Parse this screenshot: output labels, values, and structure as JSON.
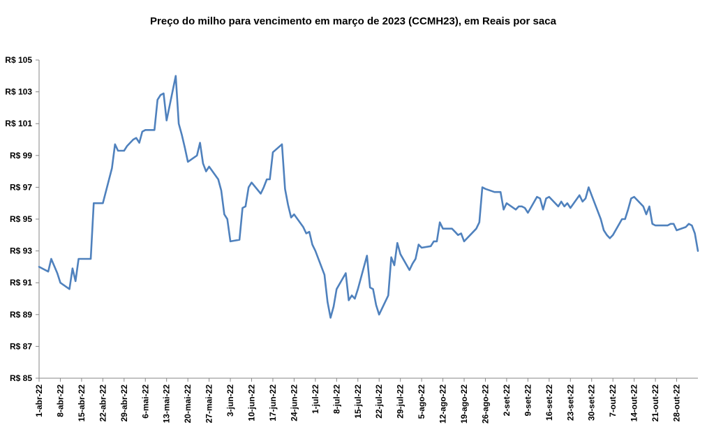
{
  "chart_data": {
    "type": "line",
    "title": "Preço do milho para vencimento em março de 2023 (CCMH23), em Reais por saca",
    "xlabel": "",
    "ylabel": "",
    "ylim": [
      85,
      105
    ],
    "y_ticks": [
      85,
      87,
      89,
      91,
      93,
      95,
      97,
      99,
      101,
      103,
      105
    ],
    "y_tick_labels": [
      "R$ 85",
      "R$ 87",
      "R$ 89",
      "R$ 91",
      "R$ 93",
      "R$ 95",
      "R$ 97",
      "R$ 99",
      "R$ 101",
      "R$ 103",
      "R$ 105"
    ],
    "x_tick_labels": [
      "1-abr-22",
      "8-abr-22",
      "15-abr-22",
      "22-abr-22",
      "29-abr-22",
      "6-mai-22",
      "13-mai-22",
      "20-mai-22",
      "27-mai-22",
      "3-jun-22",
      "10-jun-22",
      "17-jun-22",
      "24-jun-22",
      "1-jul-22",
      "8-jul-22",
      "15-jul-22",
      "22-jul-22",
      "29-jul-22",
      "5-ago-22",
      "12-ago-22",
      "19-ago-22",
      "26-ago-22",
      "2-set-22",
      "9-set-22",
      "16-set-22",
      "23-set-22",
      "30-set-22",
      "7-out-22",
      "14-out-22",
      "21-out-22",
      "28-out-22"
    ],
    "x_range_days": [
      0,
      217
    ],
    "grid": false,
    "legend": "none",
    "line_color": "#4f81bd",
    "series": [
      {
        "name": "CCMH23",
        "x_days": [
          0,
          3,
          4,
          6,
          7,
          10,
          11,
          12,
          13,
          17,
          18,
          21,
          24,
          25,
          26,
          28,
          29,
          31,
          32,
          33,
          34,
          35,
          38,
          39,
          40,
          41,
          42,
          45,
          46,
          47,
          48,
          49,
          52,
          53,
          54,
          55,
          56,
          59,
          60,
          61,
          62,
          63,
          66,
          67,
          68,
          69,
          70,
          73,
          74,
          75,
          76,
          77,
          80,
          81,
          82,
          83,
          84,
          87,
          88,
          89,
          90,
          91,
          94,
          95,
          96,
          97,
          98,
          101,
          102,
          103,
          104,
          105,
          108,
          109,
          110,
          111,
          112,
          115,
          116,
          117,
          118,
          119,
          122,
          123,
          124,
          125,
          126,
          129,
          130,
          131,
          132,
          133,
          136,
          137,
          138,
          139,
          140,
          143,
          144,
          145,
          146,
          147,
          150,
          151,
          152,
          153,
          154,
          157,
          158,
          159,
          160,
          161,
          164,
          165,
          166,
          167,
          168,
          171,
          172,
          173,
          174,
          175,
          178,
          179,
          180,
          181,
          182,
          185,
          186,
          187,
          188,
          189,
          192,
          193,
          194,
          195,
          196,
          199,
          200,
          201,
          202,
          203,
          206,
          207,
          208,
          209,
          210,
          213,
          214,
          215,
          216,
          217
        ],
        "values": [
          92.0,
          91.7,
          92.5,
          91.6,
          91.0,
          90.6,
          91.9,
          91.1,
          92.5,
          92.5,
          96.0,
          96.0,
          98.2,
          99.7,
          99.3,
          99.3,
          99.6,
          100.0,
          100.1,
          99.8,
          100.5,
          100.6,
          100.6,
          102.5,
          102.8,
          102.9,
          101.2,
          104.0,
          101.0,
          100.3,
          99.5,
          98.6,
          99.0,
          99.8,
          98.5,
          98.0,
          98.3,
          97.5,
          96.8,
          95.3,
          95.0,
          93.6,
          93.7,
          95.7,
          95.8,
          97.0,
          97.3,
          96.6,
          97.0,
          97.5,
          97.5,
          99.2,
          99.7,
          96.9,
          95.9,
          95.1,
          95.3,
          94.5,
          94.1,
          94.2,
          93.4,
          93.0,
          91.5,
          89.8,
          88.8,
          89.5,
          90.6,
          91.6,
          89.9,
          90.2,
          90.0,
          90.6,
          92.7,
          90.7,
          90.6,
          89.6,
          89.0,
          90.2,
          92.6,
          92.1,
          93.5,
          92.8,
          91.8,
          92.2,
          92.5,
          93.4,
          93.2,
          93.3,
          93.6,
          93.6,
          94.8,
          94.4,
          94.4,
          94.2,
          94.0,
          94.1,
          93.6,
          94.2,
          94.4,
          94.8,
          97.0,
          96.9,
          96.7,
          96.7,
          96.7,
          95.6,
          96.0,
          95.6,
          95.8,
          95.8,
          95.7,
          95.4,
          96.4,
          96.3,
          95.6,
          96.3,
          96.4,
          95.8,
          96.1,
          95.8,
          96.0,
          95.7,
          96.5,
          96.1,
          96.3,
          97.0,
          96.5,
          95.0,
          94.3,
          94.0,
          93.8,
          94.0,
          95.0,
          95.0,
          95.6,
          96.3,
          96.4,
          95.8,
          95.3,
          95.8,
          94.7,
          94.6,
          94.6,
          94.6,
          94.7,
          94.7,
          94.3,
          94.5,
          94.7,
          94.6,
          94.1,
          93.0
        ]
      }
    ]
  }
}
